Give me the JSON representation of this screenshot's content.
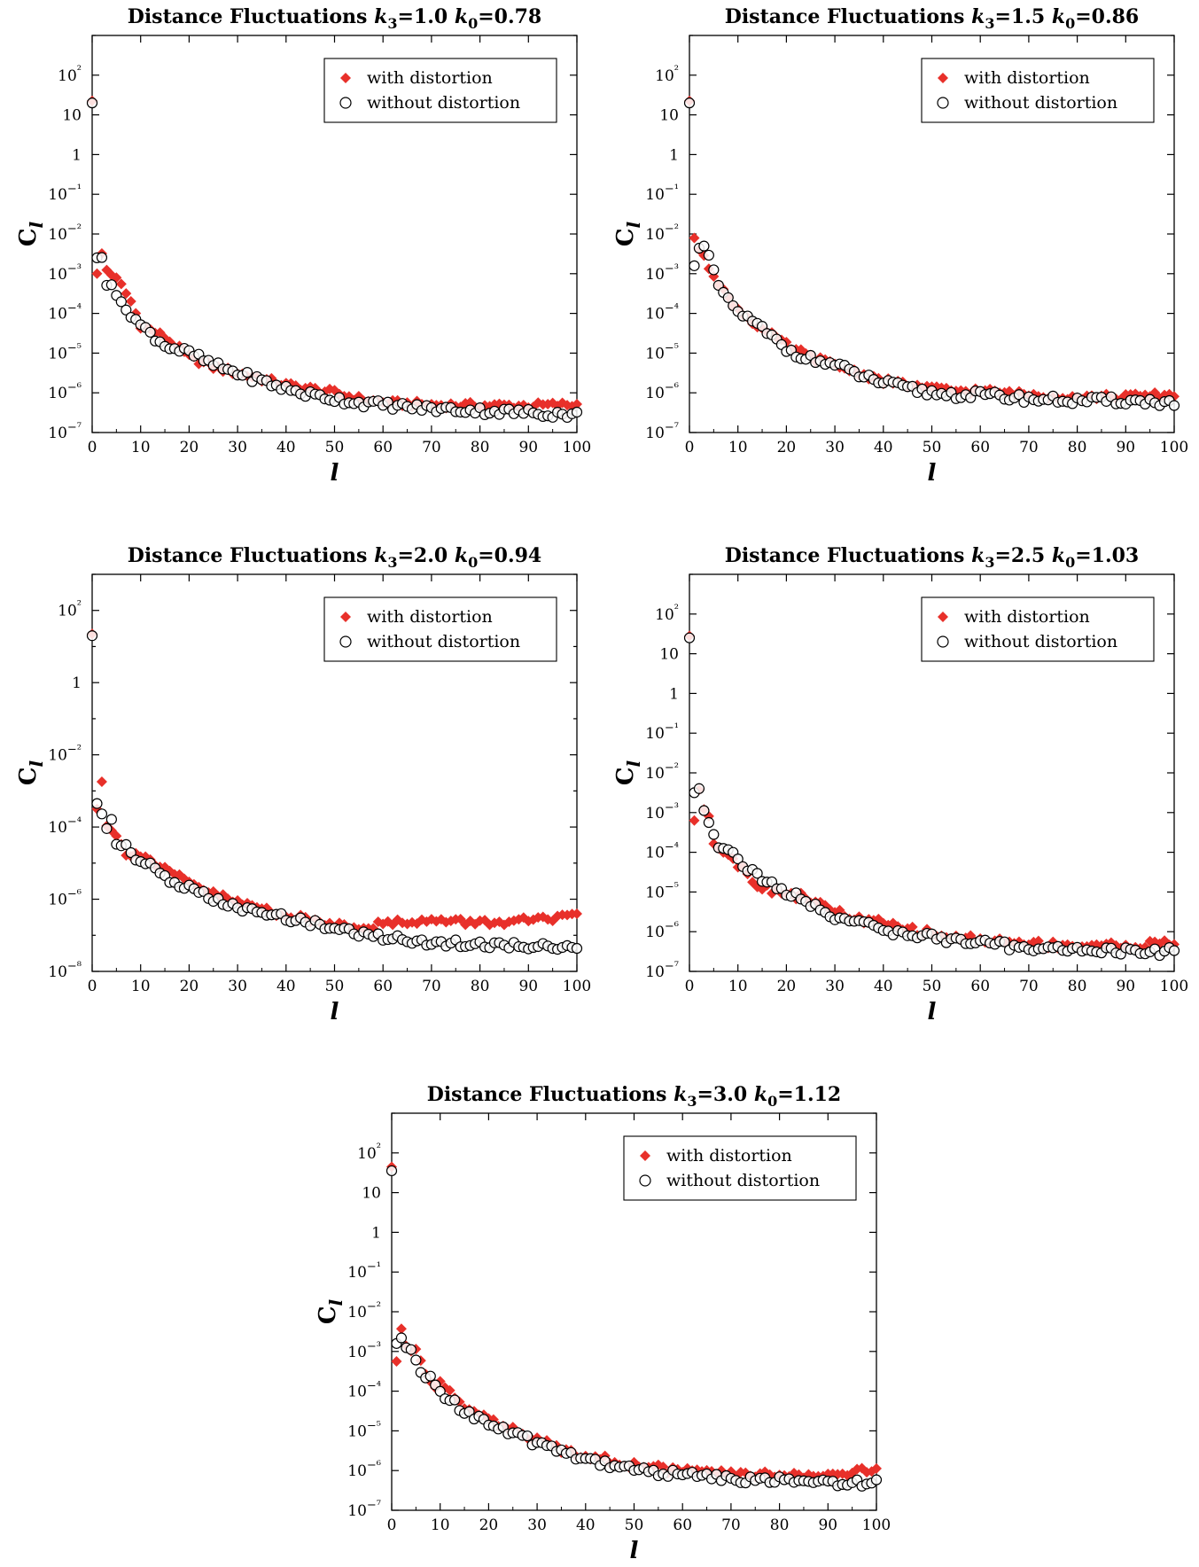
{
  "figure": {
    "marker_colors": {
      "with": "#e8302a",
      "without_fill": "#ffffff",
      "without_stroke": "#000000"
    },
    "ylabel": "C",
    "ylabel_sub": "l",
    "xlabel": "l",
    "legend": [
      "with distortion",
      "without distortion"
    ],
    "xticks": [
      "0",
      "10",
      "20",
      "30",
      "40",
      "50",
      "60",
      "70",
      "80",
      "90",
      "100"
    ]
  },
  "chart_data": [
    {
      "type": "scatter",
      "title": {
        "prefix": "Distance Fluctuations ",
        "k3": "1.0",
        "k0": "0.78"
      },
      "xlim": [
        0,
        100
      ],
      "yscale": "log",
      "ylim_exp": [
        -7,
        3
      ],
      "ytick_exps": [
        -7,
        -6,
        -5,
        -4,
        -3,
        -2,
        -1,
        0,
        1,
        2
      ],
      "legend_position": "top-right",
      "series": [
        {
          "name": "with distortion",
          "marker": "diamond",
          "anchors": [
            [
              0,
              1.35
            ],
            [
              1,
              -3.0
            ],
            [
              2,
              -2.5
            ],
            [
              3,
              -2.9
            ],
            [
              4,
              -3.0
            ],
            [
              6,
              -3.3
            ],
            [
              8,
              -3.7
            ],
            [
              10,
              -4.3
            ],
            [
              15,
              -4.6
            ],
            [
              20,
              -5.1
            ],
            [
              25,
              -5.35
            ],
            [
              30,
              -5.5
            ],
            [
              35,
              -5.65
            ],
            [
              40,
              -5.8
            ],
            [
              45,
              -5.9
            ],
            [
              50,
              -6.0
            ],
            [
              55,
              -6.15
            ],
            [
              60,
              -6.25
            ],
            [
              70,
              -6.3
            ],
            [
              80,
              -6.32
            ],
            [
              90,
              -6.32
            ],
            [
              100,
              -6.3
            ]
          ],
          "jitter": 0.08
        },
        {
          "name": "without distortion",
          "marker": "circle",
          "anchors": [
            [
              0,
              1.3
            ],
            [
              1,
              -2.6
            ],
            [
              2,
              -2.6
            ],
            [
              3,
              -3.2
            ],
            [
              4,
              -3.2
            ],
            [
              6,
              -3.8
            ],
            [
              8,
              -4.0
            ],
            [
              10,
              -4.3
            ],
            [
              15,
              -4.8
            ],
            [
              20,
              -5.0
            ],
            [
              25,
              -5.3
            ],
            [
              30,
              -5.5
            ],
            [
              35,
              -5.7
            ],
            [
              40,
              -5.9
            ],
            [
              45,
              -6.05
            ],
            [
              50,
              -6.15
            ],
            [
              55,
              -6.25
            ],
            [
              60,
              -6.3
            ],
            [
              70,
              -6.4
            ],
            [
              80,
              -6.45
            ],
            [
              90,
              -6.5
            ],
            [
              100,
              -6.55
            ]
          ],
          "jitter": 0.1
        }
      ]
    },
    {
      "type": "scatter",
      "title": {
        "prefix": "Distance Fluctuations ",
        "k3": "1.5",
        "k0": "0.86"
      },
      "xlim": [
        0,
        100
      ],
      "yscale": "log",
      "ylim_exp": [
        -7,
        3
      ],
      "ytick_exps": [
        -7,
        -6,
        -5,
        -4,
        -3,
        -2,
        -1,
        0,
        1,
        2
      ],
      "legend_position": "top-right",
      "series": [
        {
          "name": "with distortion",
          "marker": "diamond",
          "anchors": [
            [
              0,
              1.35
            ],
            [
              1,
              -2.1
            ],
            [
              2,
              -2.35
            ],
            [
              3,
              -2.5
            ],
            [
              4,
              -2.8
            ],
            [
              5,
              -3.0
            ],
            [
              6,
              -3.3
            ],
            [
              8,
              -3.6
            ],
            [
              10,
              -3.9
            ],
            [
              15,
              -4.4
            ],
            [
              20,
              -4.8
            ],
            [
              25,
              -5.1
            ],
            [
              30,
              -5.3
            ],
            [
              35,
              -5.5
            ],
            [
              40,
              -5.7
            ],
            [
              45,
              -5.8
            ],
            [
              50,
              -5.9
            ],
            [
              55,
              -5.95
            ],
            [
              60,
              -5.95
            ],
            [
              70,
              -6.05
            ],
            [
              80,
              -6.1
            ],
            [
              90,
              -6.1
            ],
            [
              100,
              -6.05
            ]
          ],
          "jitter": 0.08
        },
        {
          "name": "without distortion",
          "marker": "circle",
          "anchors": [
            [
              0,
              1.3
            ],
            [
              1,
              -2.8
            ],
            [
              2,
              -2.3
            ],
            [
              3,
              -2.35
            ],
            [
              4,
              -2.6
            ],
            [
              5,
              -3.0
            ],
            [
              6,
              -3.3
            ],
            [
              8,
              -3.7
            ],
            [
              10,
              -3.95
            ],
            [
              15,
              -4.4
            ],
            [
              20,
              -4.9
            ],
            [
              25,
              -5.15
            ],
            [
              30,
              -5.3
            ],
            [
              35,
              -5.55
            ],
            [
              40,
              -5.75
            ],
            [
              45,
              -5.9
            ],
            [
              50,
              -6.0
            ],
            [
              55,
              -6.05
            ],
            [
              60,
              -6.05
            ],
            [
              70,
              -6.15
            ],
            [
              80,
              -6.2
            ],
            [
              90,
              -6.2
            ],
            [
              100,
              -6.25
            ]
          ],
          "jitter": 0.1
        }
      ]
    },
    {
      "type": "scatter",
      "title": {
        "prefix": "Distance Fluctuations ",
        "k3": "2.0",
        "k0": "0.94"
      },
      "xlim": [
        0,
        100
      ],
      "yscale": "log",
      "ylim_exp": [
        -8,
        3
      ],
      "ytick_exps": [
        -8,
        -6,
        -4,
        -2,
        0,
        2
      ],
      "legend_position": "top-right",
      "series": [
        {
          "name": "with distortion",
          "marker": "diamond",
          "anchors": [
            [
              0,
              1.35
            ],
            [
              1,
              -3.5
            ],
            [
              2,
              -2.7
            ],
            [
              3,
              -3.9
            ],
            [
              5,
              -4.3
            ],
            [
              7,
              -4.7
            ],
            [
              10,
              -4.75
            ],
            [
              15,
              -5.2
            ],
            [
              20,
              -5.55
            ],
            [
              25,
              -5.85
            ],
            [
              30,
              -6.1
            ],
            [
              35,
              -6.25
            ],
            [
              40,
              -6.45
            ],
            [
              45,
              -6.6
            ],
            [
              50,
              -6.7
            ],
            [
              55,
              -6.75
            ],
            [
              60,
              -6.7
            ],
            [
              65,
              -6.6
            ],
            [
              70,
              -6.6
            ],
            [
              80,
              -6.65
            ],
            [
              90,
              -6.6
            ],
            [
              100,
              -6.5
            ]
          ],
          "jitter": 0.1
        },
        {
          "name": "without distortion",
          "marker": "circle",
          "anchors": [
            [
              0,
              1.3
            ],
            [
              1,
              -3.35
            ],
            [
              2,
              -3.6
            ],
            [
              3,
              -4.0
            ],
            [
              4,
              -3.8
            ],
            [
              5,
              -4.5
            ],
            [
              7,
              -4.4
            ],
            [
              9,
              -5.0
            ],
            [
              12,
              -5.0
            ],
            [
              15,
              -5.4
            ],
            [
              20,
              -5.7
            ],
            [
              25,
              -6.0
            ],
            [
              30,
              -6.25
            ],
            [
              35,
              -6.4
            ],
            [
              40,
              -6.5
            ],
            [
              45,
              -6.65
            ],
            [
              50,
              -6.8
            ],
            [
              55,
              -6.95
            ],
            [
              60,
              -7.05
            ],
            [
              70,
              -7.2
            ],
            [
              80,
              -7.25
            ],
            [
              90,
              -7.3
            ],
            [
              100,
              -7.3
            ]
          ],
          "jitter": 0.1
        }
      ]
    },
    {
      "type": "scatter",
      "title": {
        "prefix": "Distance Fluctuations ",
        "k3": "2.5",
        "k0": "1.03"
      },
      "xlim": [
        0,
        100
      ],
      "yscale": "log",
      "ylim_exp": [
        -7,
        3
      ],
      "ytick_exps": [
        -7,
        -6,
        -5,
        -4,
        -3,
        -2,
        -1,
        0,
        1,
        2
      ],
      "legend_position": "top-right",
      "series": [
        {
          "name": "with distortion",
          "marker": "diamond",
          "anchors": [
            [
              0,
              1.45
            ],
            [
              1,
              -3.2
            ],
            [
              2,
              -2.4
            ],
            [
              3,
              -2.9
            ],
            [
              4,
              -3.0
            ],
            [
              5,
              -3.7
            ],
            [
              6,
              -3.9
            ],
            [
              8,
              -4.0
            ],
            [
              10,
              -4.3
            ],
            [
              15,
              -4.9
            ],
            [
              20,
              -5.0
            ],
            [
              25,
              -5.2
            ],
            [
              30,
              -5.5
            ],
            [
              35,
              -5.7
            ],
            [
              40,
              -5.8
            ],
            [
              45,
              -5.95
            ],
            [
              50,
              -6.05
            ],
            [
              55,
              -6.15
            ],
            [
              60,
              -6.2
            ],
            [
              70,
              -6.3
            ],
            [
              80,
              -6.35
            ],
            [
              90,
              -6.35
            ],
            [
              100,
              -6.3
            ]
          ],
          "jitter": 0.1
        },
        {
          "name": "without distortion",
          "marker": "circle",
          "anchors": [
            [
              0,
              1.4
            ],
            [
              1,
              -2.5
            ],
            [
              2,
              -2.4
            ],
            [
              3,
              -2.9
            ],
            [
              4,
              -3.2
            ],
            [
              5,
              -3.5
            ],
            [
              6,
              -3.8
            ],
            [
              8,
              -3.9
            ],
            [
              10,
              -4.2
            ],
            [
              15,
              -4.7
            ],
            [
              20,
              -5.0
            ],
            [
              25,
              -5.3
            ],
            [
              30,
              -5.6
            ],
            [
              35,
              -5.8
            ],
            [
              40,
              -5.95
            ],
            [
              45,
              -6.05
            ],
            [
              50,
              -6.15
            ],
            [
              55,
              -6.2
            ],
            [
              60,
              -6.3
            ],
            [
              70,
              -6.4
            ],
            [
              80,
              -6.45
            ],
            [
              90,
              -6.5
            ],
            [
              100,
              -6.5
            ]
          ],
          "jitter": 0.1
        }
      ]
    },
    {
      "type": "scatter",
      "title": {
        "prefix": "Distance Fluctuations ",
        "k3": "3.0",
        "k0": "1.12"
      },
      "xlim": [
        0,
        100
      ],
      "yscale": "log",
      "ylim_exp": [
        -7,
        3
      ],
      "ytick_exps": [
        -7,
        -6,
        -5,
        -4,
        -3,
        -2,
        -1,
        0,
        1,
        2
      ],
      "legend_position": "top-right",
      "series": [
        {
          "name": "with distortion",
          "marker": "diamond",
          "anchors": [
            [
              0,
              1.65
            ],
            [
              1,
              -3.25
            ],
            [
              2,
              -2.45
            ],
            [
              3,
              -2.95
            ],
            [
              4,
              -3.05
            ],
            [
              5,
              -3.0
            ],
            [
              6,
              -3.2
            ],
            [
              8,
              -3.8
            ],
            [
              10,
              -3.85
            ],
            [
              15,
              -4.35
            ],
            [
              20,
              -4.65
            ],
            [
              25,
              -5.0
            ],
            [
              30,
              -5.25
            ],
            [
              35,
              -5.45
            ],
            [
              40,
              -5.6
            ],
            [
              45,
              -5.75
            ],
            [
              50,
              -5.85
            ],
            [
              55,
              -5.95
            ],
            [
              60,
              -6.0
            ],
            [
              70,
              -6.1
            ],
            [
              80,
              -6.1
            ],
            [
              90,
              -6.1
            ],
            [
              100,
              -6.0
            ]
          ],
          "jitter": 0.1
        },
        {
          "name": "without distortion",
          "marker": "circle",
          "anchors": [
            [
              0,
              1.55
            ],
            [
              1,
              -2.8
            ],
            [
              2,
              -2.6
            ],
            [
              3,
              -3.0
            ],
            [
              4,
              -3.0
            ],
            [
              6,
              -3.5
            ],
            [
              8,
              -3.7
            ],
            [
              10,
              -4.0
            ],
            [
              15,
              -4.5
            ],
            [
              20,
              -4.8
            ],
            [
              25,
              -5.1
            ],
            [
              30,
              -5.3
            ],
            [
              35,
              -5.5
            ],
            [
              40,
              -5.7
            ],
            [
              45,
              -5.85
            ],
            [
              50,
              -5.95
            ],
            [
              55,
              -6.05
            ],
            [
              60,
              -6.1
            ],
            [
              70,
              -6.2
            ],
            [
              80,
              -6.25
            ],
            [
              90,
              -6.3
            ],
            [
              100,
              -6.3
            ]
          ],
          "jitter": 0.1
        }
      ]
    }
  ]
}
